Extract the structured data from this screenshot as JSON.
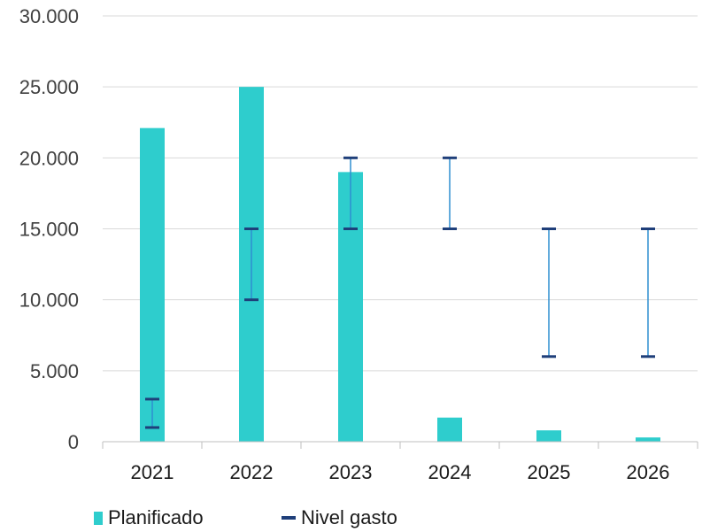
{
  "chart_data": {
    "type": "bar",
    "categories": [
      "2021",
      "2022",
      "2023",
      "2024",
      "2025",
      "2026"
    ],
    "series": [
      {
        "name": "Planificado",
        "type": "bar",
        "color": "#2ECDCD",
        "values": [
          22100,
          25000,
          19000,
          1700,
          800,
          300
        ]
      },
      {
        "name": "Nivel gasto",
        "type": "range",
        "color": "#1F3F7A",
        "whisker_color": "#2F8FD0",
        "low": [
          1000,
          10000,
          15000,
          15000,
          6000,
          6000
        ],
        "high": [
          3000,
          15000,
          20000,
          20000,
          15000,
          15000
        ]
      }
    ],
    "yticks": [
      "0",
      "5.000",
      "10.000",
      "15.000",
      "20.000",
      "25.000",
      "30.000"
    ],
    "ylim": [
      0,
      30000
    ],
    "grid": true,
    "legend_position": "bottom-left",
    "title": "",
    "xlabel": "",
    "ylabel": ""
  }
}
